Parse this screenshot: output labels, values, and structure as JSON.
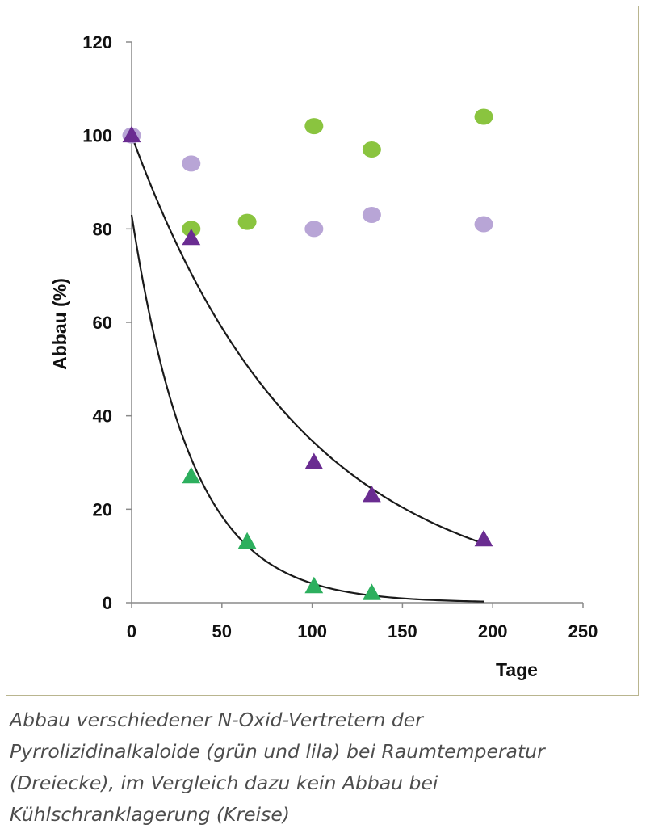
{
  "chart_data": {
    "type": "scatter",
    "xlabel": "Tage",
    "ylabel": "Abbau (%)",
    "xlim": [
      0,
      250
    ],
    "ylim": [
      0,
      120
    ],
    "x_ticks": [
      0,
      50,
      100,
      150,
      200,
      250
    ],
    "y_ticks": [
      0,
      20,
      40,
      60,
      80,
      100,
      120
    ],
    "grid": false,
    "legend": "none",
    "series": [
      {
        "marker": "circle",
        "color": "#8ac43f",
        "points": [
          [
            33,
            80
          ],
          [
            64,
            81.5
          ],
          [
            101,
            102
          ],
          [
            133,
            97
          ],
          [
            195,
            104
          ]
        ]
      },
      {
        "marker": "circle",
        "color": "#b8a5d6",
        "points": [
          [
            0,
            100
          ],
          [
            33,
            94
          ],
          [
            101,
            80
          ],
          [
            133,
            83
          ],
          [
            195,
            81
          ]
        ]
      },
      {
        "marker": "triangle",
        "color": "#6a2c91",
        "points": [
          [
            0,
            100
          ],
          [
            33,
            78
          ],
          [
            101,
            30
          ],
          [
            133,
            23
          ],
          [
            195,
            13.5
          ]
        ]
      },
      {
        "marker": "triangle",
        "color": "#2daf5e",
        "points": [
          [
            33,
            27
          ],
          [
            64,
            13
          ],
          [
            101,
            3.5
          ],
          [
            133,
            2
          ]
        ]
      }
    ],
    "fit_curves": [
      {
        "type": "exponential_decay",
        "y0": 100,
        "k": 0.0106,
        "x_range": [
          0,
          195
        ],
        "color": "#1a1a1a"
      },
      {
        "type": "exponential_decay",
        "y0": 83,
        "k": 0.03,
        "x_range": [
          0,
          195
        ],
        "color": "#1a1a1a"
      }
    ]
  },
  "caption": [
    "Abbau verschiedener N-Oxid-Vertretern der",
    "Pyrrolizidinalkaloide (grün und lila) bei Raumtemperatur",
    "(Dreiecke), im Vergleich dazu kein Abbau bei",
    "Kühlschranklagerung (Kreise)"
  ]
}
